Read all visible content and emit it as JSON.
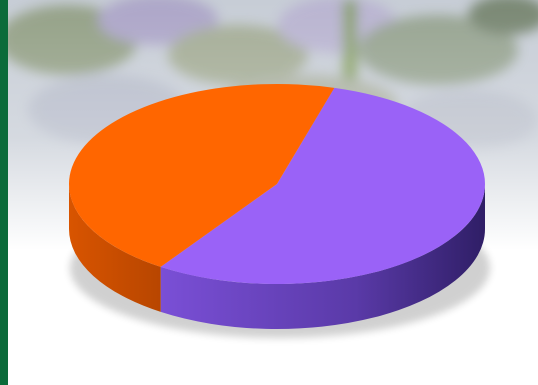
{
  "theme": {
    "sidebar_color": "#0b6b3a",
    "background_color": "#ffffff"
  },
  "chart_data": {
    "type": "pie",
    "style": "3d",
    "slices": [
      {
        "value": 55,
        "color": "#9a62f7",
        "side_color": "#5b3aa6"
      },
      {
        "value": 45,
        "color": "#ff6600",
        "side_color": "#cc5200"
      }
    ],
    "start_angle_deg": -74
  }
}
